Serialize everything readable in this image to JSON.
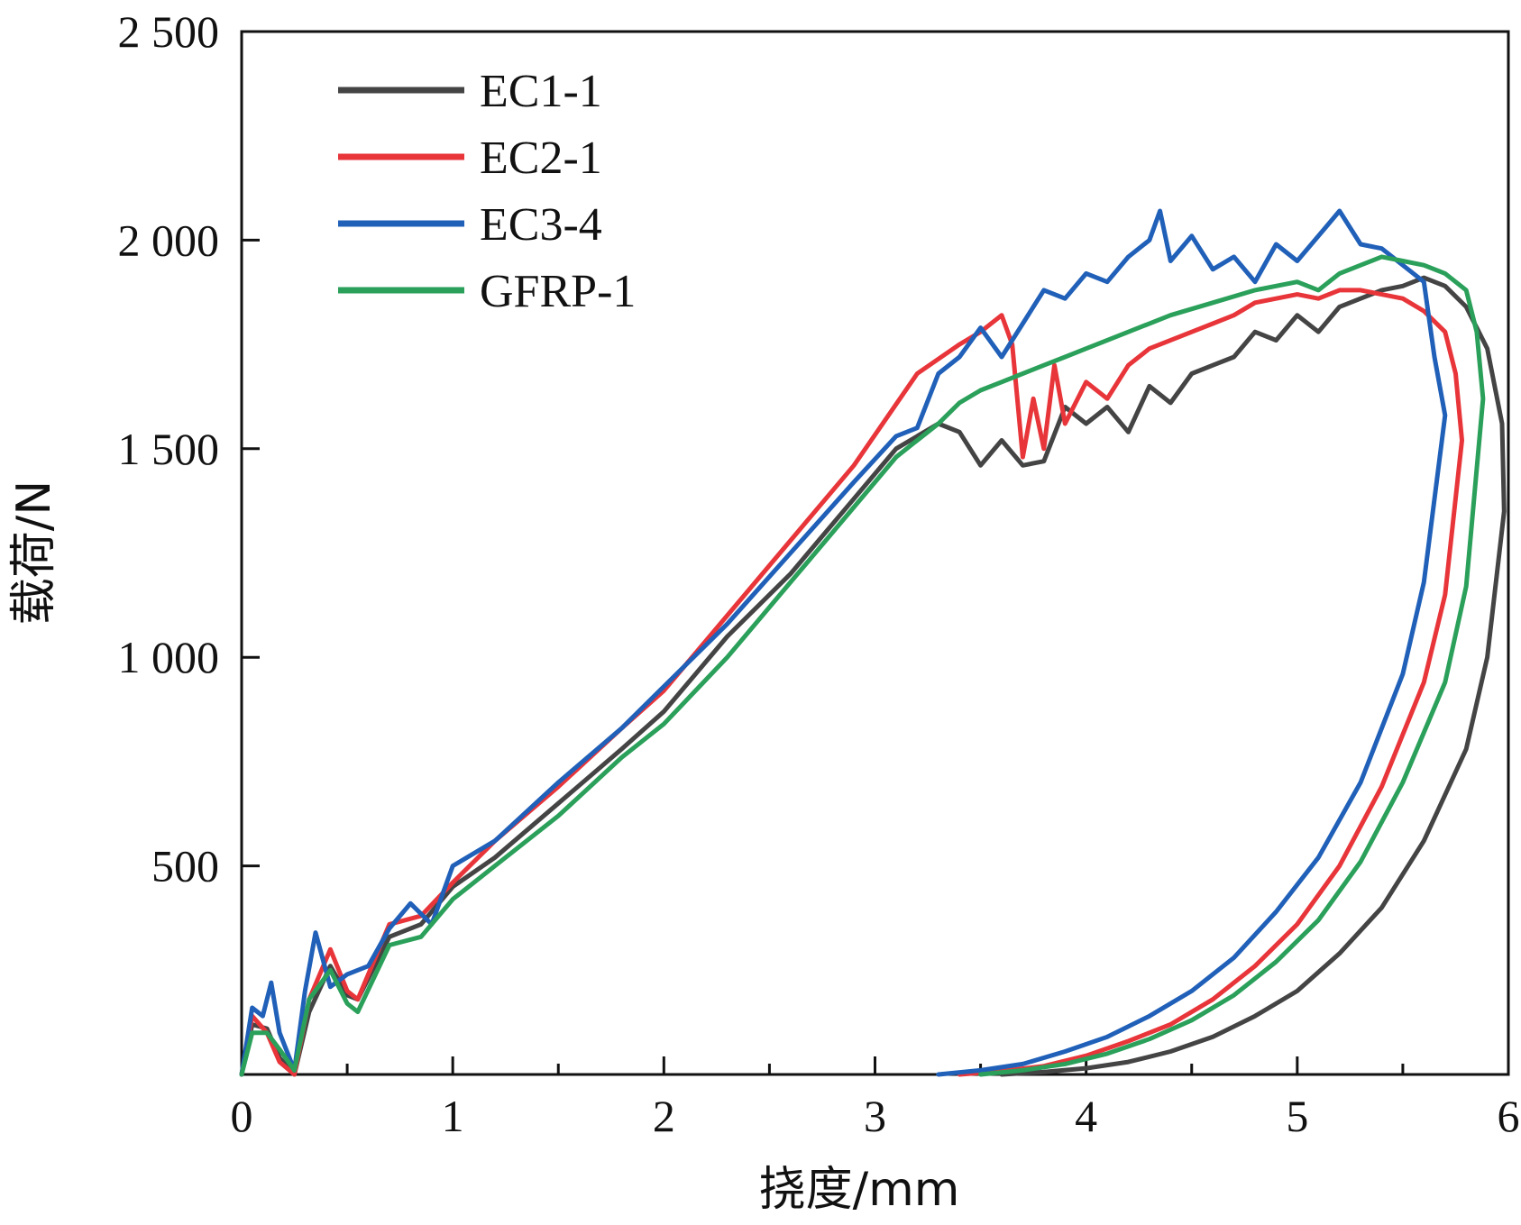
{
  "chart_data": {
    "type": "line",
    "title": "",
    "xlabel": "挠度/mm",
    "ylabel": "载荷/N",
    "xlim": [
      0,
      6
    ],
    "ylim": [
      0,
      2500
    ],
    "x_ticks": [
      0,
      1,
      2,
      3,
      4,
      5,
      6
    ],
    "x_tick_labels": [
      "0",
      "1",
      "2",
      "3",
      "4",
      "5",
      "6"
    ],
    "y_ticks": [
      500,
      1000,
      1500,
      2000,
      2500
    ],
    "y_tick_labels": [
      "500",
      "1 000",
      "1 500",
      "2 000",
      "2 500"
    ],
    "grid": false,
    "legend_position": "top-left",
    "series": [
      {
        "name": "EC1-1",
        "color": "#444444",
        "points": [
          [
            0,
            0
          ],
          [
            0.05,
            120
          ],
          [
            0.12,
            110
          ],
          [
            0.18,
            40
          ],
          [
            0.25,
            0
          ],
          [
            0.32,
            150
          ],
          [
            0.42,
            260
          ],
          [
            0.5,
            190
          ],
          [
            0.55,
            180
          ],
          [
            0.7,
            330
          ],
          [
            0.85,
            360
          ],
          [
            1.0,
            450
          ],
          [
            1.2,
            520
          ],
          [
            1.5,
            650
          ],
          [
            1.8,
            780
          ],
          [
            2.0,
            870
          ],
          [
            2.3,
            1050
          ],
          [
            2.6,
            1200
          ],
          [
            2.9,
            1380
          ],
          [
            3.1,
            1500
          ],
          [
            3.3,
            1560
          ],
          [
            3.4,
            1540
          ],
          [
            3.5,
            1460
          ],
          [
            3.6,
            1520
          ],
          [
            3.7,
            1460
          ],
          [
            3.8,
            1470
          ],
          [
            3.9,
            1600
          ],
          [
            4.0,
            1560
          ],
          [
            4.1,
            1600
          ],
          [
            4.2,
            1540
          ],
          [
            4.3,
            1650
          ],
          [
            4.4,
            1610
          ],
          [
            4.5,
            1680
          ],
          [
            4.6,
            1700
          ],
          [
            4.7,
            1720
          ],
          [
            4.8,
            1780
          ],
          [
            4.9,
            1760
          ],
          [
            5.0,
            1820
          ],
          [
            5.1,
            1780
          ],
          [
            5.2,
            1840
          ],
          [
            5.3,
            1860
          ],
          [
            5.4,
            1880
          ],
          [
            5.5,
            1890
          ],
          [
            5.6,
            1910
          ],
          [
            5.7,
            1890
          ],
          [
            5.8,
            1840
          ],
          [
            5.9,
            1740
          ],
          [
            5.97,
            1560
          ],
          [
            5.98,
            1350
          ],
          [
            5.9,
            1000
          ],
          [
            5.8,
            780
          ],
          [
            5.6,
            560
          ],
          [
            5.4,
            400
          ],
          [
            5.2,
            290
          ],
          [
            5.0,
            200
          ],
          [
            4.8,
            140
          ],
          [
            4.6,
            90
          ],
          [
            4.4,
            55
          ],
          [
            4.2,
            30
          ],
          [
            4.0,
            15
          ],
          [
            3.8,
            6
          ],
          [
            3.6,
            0
          ]
        ]
      },
      {
        "name": "EC2-1",
        "color": "#e8353a",
        "points": [
          [
            0,
            0
          ],
          [
            0.05,
            140
          ],
          [
            0.12,
            100
          ],
          [
            0.18,
            30
          ],
          [
            0.25,
            0
          ],
          [
            0.32,
            180
          ],
          [
            0.42,
            300
          ],
          [
            0.5,
            200
          ],
          [
            0.55,
            180
          ],
          [
            0.7,
            360
          ],
          [
            0.85,
            380
          ],
          [
            1.0,
            460
          ],
          [
            1.2,
            560
          ],
          [
            1.5,
            690
          ],
          [
            1.8,
            830
          ],
          [
            2.0,
            920
          ],
          [
            2.3,
            1100
          ],
          [
            2.6,
            1280
          ],
          [
            2.9,
            1460
          ],
          [
            3.2,
            1680
          ],
          [
            3.4,
            1750
          ],
          [
            3.5,
            1780
          ],
          [
            3.6,
            1820
          ],
          [
            3.65,
            1750
          ],
          [
            3.7,
            1480
          ],
          [
            3.75,
            1620
          ],
          [
            3.8,
            1500
          ],
          [
            3.85,
            1700
          ],
          [
            3.9,
            1560
          ],
          [
            4.0,
            1660
          ],
          [
            4.1,
            1620
          ],
          [
            4.2,
            1700
          ],
          [
            4.3,
            1740
          ],
          [
            4.5,
            1780
          ],
          [
            4.6,
            1800
          ],
          [
            4.7,
            1820
          ],
          [
            4.8,
            1850
          ],
          [
            4.9,
            1860
          ],
          [
            5.0,
            1870
          ],
          [
            5.1,
            1860
          ],
          [
            5.2,
            1880
          ],
          [
            5.3,
            1880
          ],
          [
            5.4,
            1870
          ],
          [
            5.5,
            1860
          ],
          [
            5.6,
            1830
          ],
          [
            5.7,
            1780
          ],
          [
            5.75,
            1680
          ],
          [
            5.78,
            1520
          ],
          [
            5.7,
            1150
          ],
          [
            5.6,
            940
          ],
          [
            5.4,
            690
          ],
          [
            5.2,
            500
          ],
          [
            5.0,
            360
          ],
          [
            4.8,
            260
          ],
          [
            4.6,
            180
          ],
          [
            4.4,
            120
          ],
          [
            4.2,
            80
          ],
          [
            4.0,
            45
          ],
          [
            3.8,
            20
          ],
          [
            3.6,
            8
          ],
          [
            3.4,
            0
          ]
        ]
      },
      {
        "name": "EC3-4",
        "color": "#2060b8",
        "points": [
          [
            0,
            0
          ],
          [
            0.05,
            160
          ],
          [
            0.1,
            140
          ],
          [
            0.14,
            220
          ],
          [
            0.18,
            100
          ],
          [
            0.25,
            10
          ],
          [
            0.3,
            200
          ],
          [
            0.35,
            340
          ],
          [
            0.42,
            210
          ],
          [
            0.5,
            240
          ],
          [
            0.6,
            260
          ],
          [
            0.7,
            350
          ],
          [
            0.8,
            410
          ],
          [
            0.9,
            360
          ],
          [
            1.0,
            500
          ],
          [
            1.2,
            560
          ],
          [
            1.5,
            700
          ],
          [
            1.8,
            830
          ],
          [
            2.0,
            930
          ],
          [
            2.3,
            1080
          ],
          [
            2.6,
            1250
          ],
          [
            2.9,
            1420
          ],
          [
            3.1,
            1530
          ],
          [
            3.2,
            1550
          ],
          [
            3.3,
            1680
          ],
          [
            3.4,
            1720
          ],
          [
            3.5,
            1790
          ],
          [
            3.6,
            1720
          ],
          [
            3.7,
            1800
          ],
          [
            3.8,
            1880
          ],
          [
            3.9,
            1860
          ],
          [
            4.0,
            1920
          ],
          [
            4.1,
            1900
          ],
          [
            4.2,
            1960
          ],
          [
            4.3,
            2000
          ],
          [
            4.35,
            2070
          ],
          [
            4.4,
            1950
          ],
          [
            4.5,
            2010
          ],
          [
            4.6,
            1930
          ],
          [
            4.7,
            1960
          ],
          [
            4.8,
            1900
          ],
          [
            4.9,
            1990
          ],
          [
            5.0,
            1950
          ],
          [
            5.1,
            2010
          ],
          [
            5.2,
            2070
          ],
          [
            5.3,
            1990
          ],
          [
            5.4,
            1980
          ],
          [
            5.5,
            1940
          ],
          [
            5.6,
            1900
          ],
          [
            5.65,
            1720
          ],
          [
            5.7,
            1580
          ],
          [
            5.6,
            1180
          ],
          [
            5.5,
            960
          ],
          [
            5.3,
            700
          ],
          [
            5.1,
            520
          ],
          [
            4.9,
            390
          ],
          [
            4.7,
            280
          ],
          [
            4.5,
            200
          ],
          [
            4.3,
            140
          ],
          [
            4.1,
            90
          ],
          [
            3.9,
            55
          ],
          [
            3.7,
            25
          ],
          [
            3.5,
            10
          ],
          [
            3.3,
            0
          ]
        ]
      },
      {
        "name": "GFRP-1",
        "color": "#2aa05a",
        "points": [
          [
            0,
            0
          ],
          [
            0.05,
            100
          ],
          [
            0.12,
            100
          ],
          [
            0.18,
            60
          ],
          [
            0.25,
            10
          ],
          [
            0.32,
            180
          ],
          [
            0.42,
            250
          ],
          [
            0.5,
            170
          ],
          [
            0.55,
            150
          ],
          [
            0.7,
            310
          ],
          [
            0.85,
            330
          ],
          [
            1.0,
            420
          ],
          [
            1.2,
            500
          ],
          [
            1.5,
            620
          ],
          [
            1.8,
            760
          ],
          [
            2.0,
            840
          ],
          [
            2.3,
            1000
          ],
          [
            2.6,
            1180
          ],
          [
            2.9,
            1360
          ],
          [
            3.1,
            1480
          ],
          [
            3.2,
            1520
          ],
          [
            3.3,
            1560
          ],
          [
            3.4,
            1610
          ],
          [
            3.5,
            1640
          ],
          [
            3.6,
            1660
          ],
          [
            3.7,
            1680
          ],
          [
            3.8,
            1700
          ],
          [
            3.9,
            1720
          ],
          [
            4.0,
            1740
          ],
          [
            4.2,
            1780
          ],
          [
            4.4,
            1820
          ],
          [
            4.6,
            1850
          ],
          [
            4.8,
            1880
          ],
          [
            5.0,
            1900
          ],
          [
            5.1,
            1880
          ],
          [
            5.2,
            1920
          ],
          [
            5.3,
            1940
          ],
          [
            5.4,
            1960
          ],
          [
            5.5,
            1950
          ],
          [
            5.6,
            1940
          ],
          [
            5.7,
            1920
          ],
          [
            5.8,
            1880
          ],
          [
            5.85,
            1780
          ],
          [
            5.88,
            1620
          ],
          [
            5.8,
            1170
          ],
          [
            5.7,
            940
          ],
          [
            5.5,
            700
          ],
          [
            5.3,
            510
          ],
          [
            5.1,
            370
          ],
          [
            4.9,
            270
          ],
          [
            4.7,
            190
          ],
          [
            4.5,
            130
          ],
          [
            4.3,
            85
          ],
          [
            4.1,
            50
          ],
          [
            3.9,
            25
          ],
          [
            3.7,
            10
          ],
          [
            3.5,
            0
          ]
        ]
      }
    ]
  }
}
